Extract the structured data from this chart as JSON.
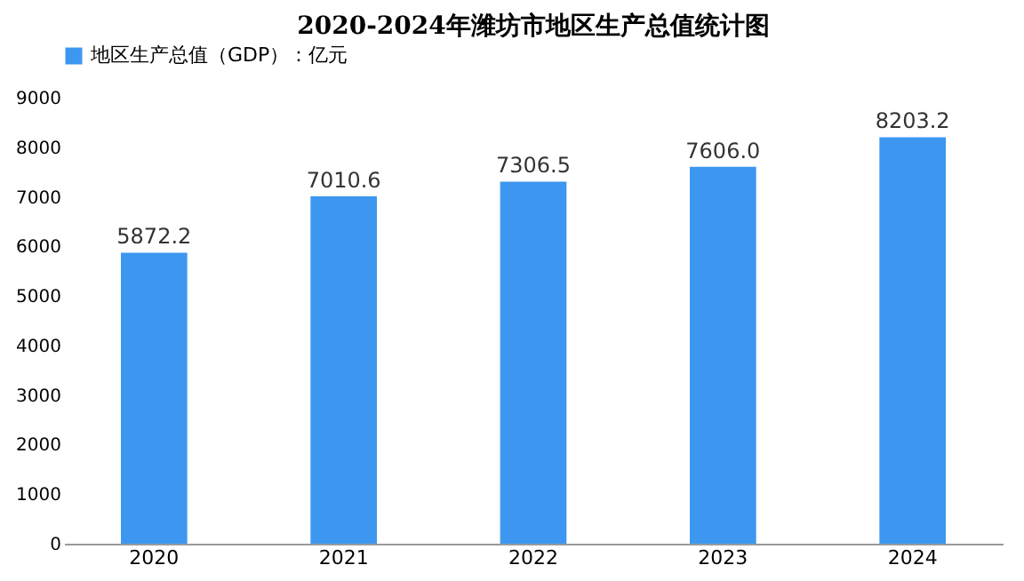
{
  "chart_data": {
    "type": "bar",
    "title": "2020-2024年潍坊市地区生产总值统计图",
    "categories": [
      "2020",
      "2021",
      "2022",
      "2023",
      "2024"
    ],
    "series": [
      {
        "name": "地区生产总值（GDP）：亿元",
        "color": "#3d97f0",
        "values": [
          5872.2,
          7010.6,
          7306.5,
          7606.0,
          8203.2
        ],
        "value_labels": [
          "5872.2",
          "7010.6",
          "7306.5",
          "7606.0",
          "8203.2"
        ]
      }
    ],
    "ylim": [
      0,
      9000
    ],
    "yticks": [
      0,
      1000,
      2000,
      3000,
      4000,
      5000,
      6000,
      7000,
      8000,
      9000
    ],
    "grid": false,
    "legend": "top"
  }
}
